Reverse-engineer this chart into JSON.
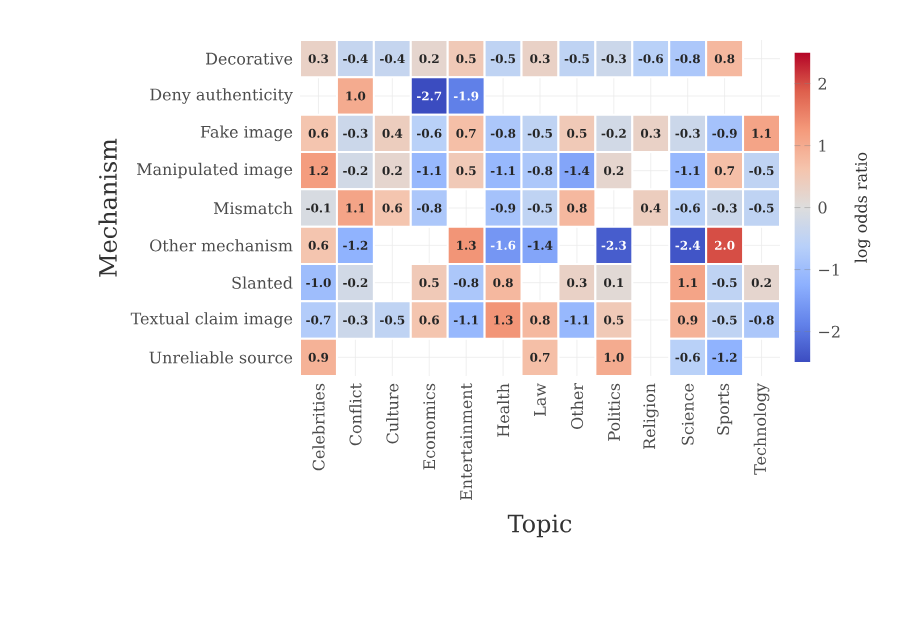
{
  "chart_data": {
    "type": "heatmap",
    "xlabel": "Topic",
    "ylabel": "Mechanism",
    "clabel": "log odds ratio",
    "categories": [
      "Celebrities",
      "Conflict",
      "Culture",
      "Economics",
      "Entertainment",
      "Health",
      "Law",
      "Other",
      "Politics",
      "Religion",
      "Science",
      "Sports",
      "Technology"
    ],
    "y_categories": [
      "Decorative",
      "Deny authenticity",
      "Fake image",
      "Manipulated image",
      "Mismatch",
      "Other mechanism",
      "Slanted",
      "Textual claim image",
      "Unreliable source"
    ],
    "cells": [
      [
        0.3,
        -0.4,
        -0.4,
        0.2,
        0.5,
        -0.5,
        0.3,
        -0.5,
        -0.3,
        -0.6,
        -0.8,
        0.8,
        null
      ],
      [
        null,
        1.0,
        null,
        -2.7,
        -1.9,
        null,
        null,
        null,
        null,
        null,
        null,
        null,
        null
      ],
      [
        0.6,
        -0.3,
        0.4,
        -0.6,
        0.7,
        -0.8,
        -0.5,
        0.5,
        -0.2,
        0.3,
        -0.3,
        -0.9,
        1.1
      ],
      [
        1.2,
        -0.2,
        0.2,
        -1.1,
        0.5,
        -1.1,
        -0.8,
        -1.4,
        0.2,
        null,
        -1.1,
        0.7,
        -0.5
      ],
      [
        -0.1,
        1.1,
        0.6,
        -0.8,
        null,
        -0.9,
        -0.5,
        0.8,
        null,
        0.4,
        -0.6,
        -0.3,
        -0.5
      ],
      [
        0.6,
        -1.2,
        null,
        null,
        1.3,
        -1.6,
        -1.4,
        null,
        -2.3,
        null,
        -2.4,
        2.0,
        null
      ],
      [
        -1.0,
        -0.2,
        null,
        0.5,
        -0.8,
        0.8,
        null,
        0.3,
        0.1,
        null,
        1.1,
        -0.5,
        0.2
      ],
      [
        -0.7,
        -0.3,
        -0.5,
        0.6,
        -1.1,
        1.3,
        0.8,
        -1.1,
        0.5,
        null,
        0.9,
        -0.5,
        -0.8
      ],
      [
        0.9,
        null,
        null,
        null,
        null,
        null,
        0.7,
        null,
        1.0,
        null,
        -0.6,
        -1.2,
        null
      ]
    ],
    "cell_labels": [
      [
        "0.3",
        "-0.4",
        "-0.4",
        "0.2",
        "0.5",
        "-0.5",
        "0.3",
        "-0.5",
        "-0.3",
        "-0.6",
        "-0.8",
        "0.8",
        null
      ],
      [
        null,
        "1.0",
        null,
        "-2.7",
        "-1.9",
        null,
        null,
        null,
        null,
        null,
        null,
        null,
        null
      ],
      [
        "0.6",
        "-0.3",
        "0.4",
        "-0.6",
        "0.7",
        "-0.8",
        "-0.5",
        "0.5",
        "-0.2",
        "0.3",
        "-0.3",
        "-0.9",
        "1.1"
      ],
      [
        "1.2",
        "-0.2",
        "0.2",
        "-1.1",
        "0.5",
        "-1.1",
        "-0.8",
        "-1.4",
        "0.2",
        null,
        "-1.1",
        "0.7",
        "-0.5"
      ],
      [
        "-0.1",
        "1.1",
        "0.6",
        "-0.8",
        null,
        "-0.9",
        "-0.5",
        "0.8",
        null,
        "0.4",
        "-0.6",
        "-0.3",
        "-0.5"
      ],
      [
        "0.6",
        "-1.2",
        null,
        null,
        "1.3",
        "-1.6",
        "-1.4",
        null,
        "-2.3",
        null,
        "-2.4",
        "2.0",
        null
      ],
      [
        "-1.0",
        "-0.2",
        null,
        "0.5",
        "-0.8",
        "0.8",
        null,
        "0.3",
        "0.1",
        null,
        "1.1",
        "-0.5",
        "0.2"
      ],
      [
        "-0.7",
        "-0.3",
        "-0.5",
        "0.6",
        "-1.1",
        "1.3",
        "0.8",
        "-1.1",
        "0.5",
        null,
        "0.9",
        "-0.5",
        "-0.8"
      ],
      [
        "0.9",
        null,
        null,
        null,
        null,
        null,
        "0.7",
        null,
        "1.0",
        null,
        "-0.6",
        "-1.2",
        null
      ]
    ],
    "clim": [
      -2.5,
      2.5
    ],
    "cticks": [
      {
        "value": -2,
        "label": "−2"
      },
      {
        "value": -1,
        "label": "−1"
      },
      0,
      1,
      2
    ],
    "grid": true
  }
}
